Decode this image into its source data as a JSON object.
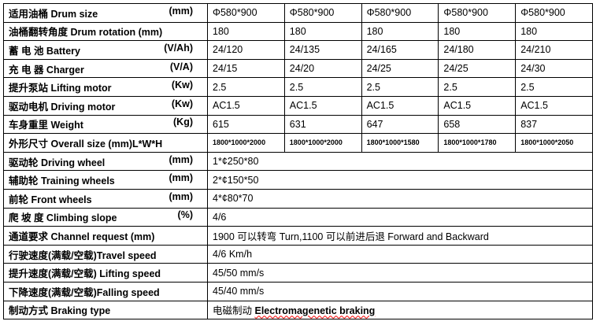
{
  "rows": [
    {
      "label": "适用油桶 Drum size",
      "unit": "(mm)",
      "values": [
        "Φ580*900",
        "Φ580*900",
        "Φ580*900",
        "Φ580*900",
        "Φ580*900"
      ]
    },
    {
      "label": "油桶翻转角度 Drum rotation (mm)",
      "unit": "",
      "values": [
        "180",
        "180",
        "180",
        "180",
        "180"
      ]
    },
    {
      "label": "蓄 电 池 Battery",
      "unit": "(V/Ah)",
      "values": [
        "24/120",
        "24/135",
        "24/165",
        "24/180",
        "24/210"
      ]
    },
    {
      "label": "充 电 器 Charger",
      "unit": "(V/A)",
      "values": [
        "24/15",
        "24/20",
        "24/25",
        "24/25",
        "24/30"
      ]
    },
    {
      "label": "提升泵站 Lifting motor",
      "unit": "(Kw)",
      "values": [
        "2.5",
        "2.5",
        "2.5",
        "2.5",
        "2.5"
      ]
    },
    {
      "label": "驱动电机 Driving motor",
      "unit": "(Kw)",
      "values": [
        "AC1.5",
        "AC1.5",
        "AC1.5",
        "AC1.5",
        "AC1.5"
      ]
    },
    {
      "label": "车身重里 Weight",
      "unit": "(Kg)",
      "values": [
        "615",
        "631",
        "647",
        "658",
        "837"
      ]
    },
    {
      "label": "外形尺寸 Overall size (mm)L*W*H",
      "unit": "",
      "values": [
        "1800*1000*2000",
        "1800*1000*2000",
        "1800*1000*1580",
        "1800*1000*1780",
        "1800*1000*2050"
      ]
    }
  ],
  "merged_rows": [
    {
      "label": "驱动轮 Driving wheel",
      "unit": "(mm)",
      "value": "1*¢250*80"
    },
    {
      "label": "辅助轮 Training wheels",
      "unit": "(mm)",
      "value": "2*¢150*50"
    },
    {
      "label": "前轮 Front wheels",
      "unit": "(mm)",
      "value": "4*¢80*70"
    },
    {
      "label": "爬 坡 度 Climbing slope",
      "unit": "(%)",
      "value": "4/6"
    },
    {
      "label": "通道要求 Channel request (mm)",
      "unit": "",
      "value": "1900 可以转弯 Turn,1100 可以前进后退 Forward and Backward"
    },
    {
      "label": "行驶速度(满载/空载)Travel speed",
      "unit": "",
      "value": "4/6 Km/h"
    },
    {
      "label": "提升速度(满载/空载) Lifting speed",
      "unit": "",
      "value": "45/50 mm/s"
    },
    {
      "label": "下降速度(满载/空载)Falling speed",
      "unit": "",
      "value": "45/40 mm/s"
    },
    {
      "label": "制动方式 Braking type",
      "unit": "",
      "value_cn": "电磁制动 ",
      "value_en": "Electromagenetic braking"
    }
  ]
}
